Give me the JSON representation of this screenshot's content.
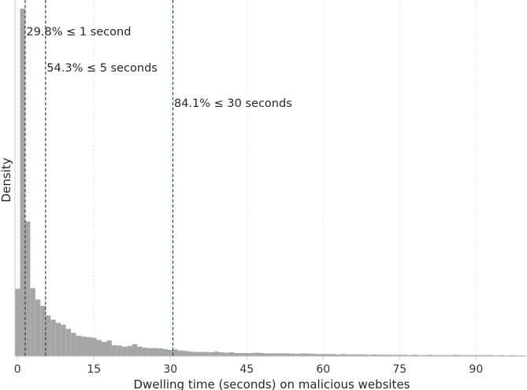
{
  "chart_data": {
    "type": "histogram",
    "title": "",
    "xlabel": "Dwelling time (seconds) on malicious websites",
    "ylabel": "Density",
    "xlim": [
      -0.5,
      100
    ],
    "ylim": [
      0,
      1
    ],
    "xticks": [
      0,
      15,
      30,
      45,
      60,
      75,
      90
    ],
    "grid": "x-dotted",
    "bar_color": "#a6a6a6",
    "threshold_color": "#1f4e4a",
    "bin_width": 1,
    "bins_start": -0.5,
    "heights": [
      0.19,
      0.98,
      0.38,
      0.192,
      0.16,
      0.142,
      0.115,
      0.103,
      0.094,
      0.089,
      0.077,
      0.066,
      0.058,
      0.055,
      0.054,
      0.052,
      0.046,
      0.04,
      0.044,
      0.031,
      0.03,
      0.027,
      0.029,
      0.034,
      0.027,
      0.024,
      0.023,
      0.023,
      0.022,
      0.02,
      0.018,
      0.019,
      0.016,
      0.015,
      0.013,
      0.012,
      0.012,
      0.012,
      0.011,
      0.013,
      0.011,
      0.01,
      0.011,
      0.009,
      0.009,
      0.009,
      0.009,
      0.01,
      0.009,
      0.008,
      0.008,
      0.008,
      0.008,
      0.008,
      0.007,
      0.007,
      0.008,
      0.007,
      0.007,
      0.006,
      0.006,
      0.006,
      0.006,
      0.005,
      0.006,
      0.005,
      0.005,
      0.005,
      0.005,
      0.004,
      0.005,
      0.004,
      0.004,
      0.004,
      0.004,
      0.004,
      0.004,
      0.003,
      0.004,
      0.003,
      0.003,
      0.004,
      0.003,
      0.003,
      0.003,
      0.003,
      0.004,
      0.003,
      0.003,
      0.003,
      0.003,
      0.003,
      0.003,
      0.003,
      0.002,
      0.003,
      0.002,
      0.003,
      0.002,
      0.002
    ],
    "thresholds": [
      {
        "x": 1.5,
        "label": "29.8% ≤ 1 second"
      },
      {
        "x": 5.5,
        "label": "54.3% ≤ 5 seconds"
      },
      {
        "x": 30.5,
        "label": "84.1% ≤ 30 seconds"
      }
    ]
  }
}
